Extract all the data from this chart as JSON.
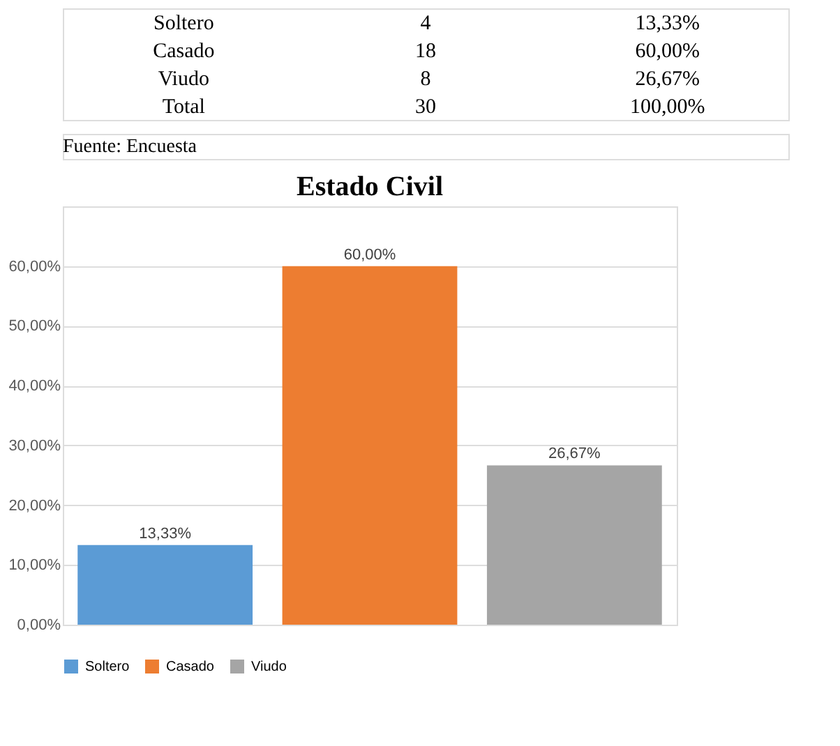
{
  "chart_data": {
    "type": "bar",
    "title": "Estado Civil",
    "categories": [
      null
    ],
    "series": [
      {
        "name": "Soltero",
        "color": "#5b9bd5",
        "values": [
          13.33
        ],
        "value_labels": [
          "13,33%"
        ]
      },
      {
        "name": "Casado",
        "color": "#ed7d31",
        "values": [
          60.0
        ],
        "value_labels": [
          "60,00%"
        ]
      },
      {
        "name": "Viudo",
        "color": "#a5a5a5",
        "values": [
          26.67
        ],
        "value_labels": [
          "26,67%"
        ]
      }
    ],
    "ylim": [
      0,
      70
    ],
    "yticks": [
      {
        "value": 0,
        "label": "0,00%"
      },
      {
        "value": 10,
        "label": "10,00%"
      },
      {
        "value": 20,
        "label": "20,00%"
      },
      {
        "value": 30,
        "label": "30,00%"
      },
      {
        "value": 40,
        "label": "40,00%"
      },
      {
        "value": 50,
        "label": "50,00%"
      },
      {
        "value": 60,
        "label": "60,00%"
      },
      {
        "value": 70,
        "label": null
      }
    ],
    "grid": "y",
    "legend": "bottom",
    "annotations": [
      "Soltero",
      "4",
      "13,33%",
      "Casado",
      "18",
      "60,00%",
      "Viudo",
      "8",
      "26,67%",
      "Total",
      "30",
      "100,00%",
      "Fuente: Encuesta"
    ]
  }
}
